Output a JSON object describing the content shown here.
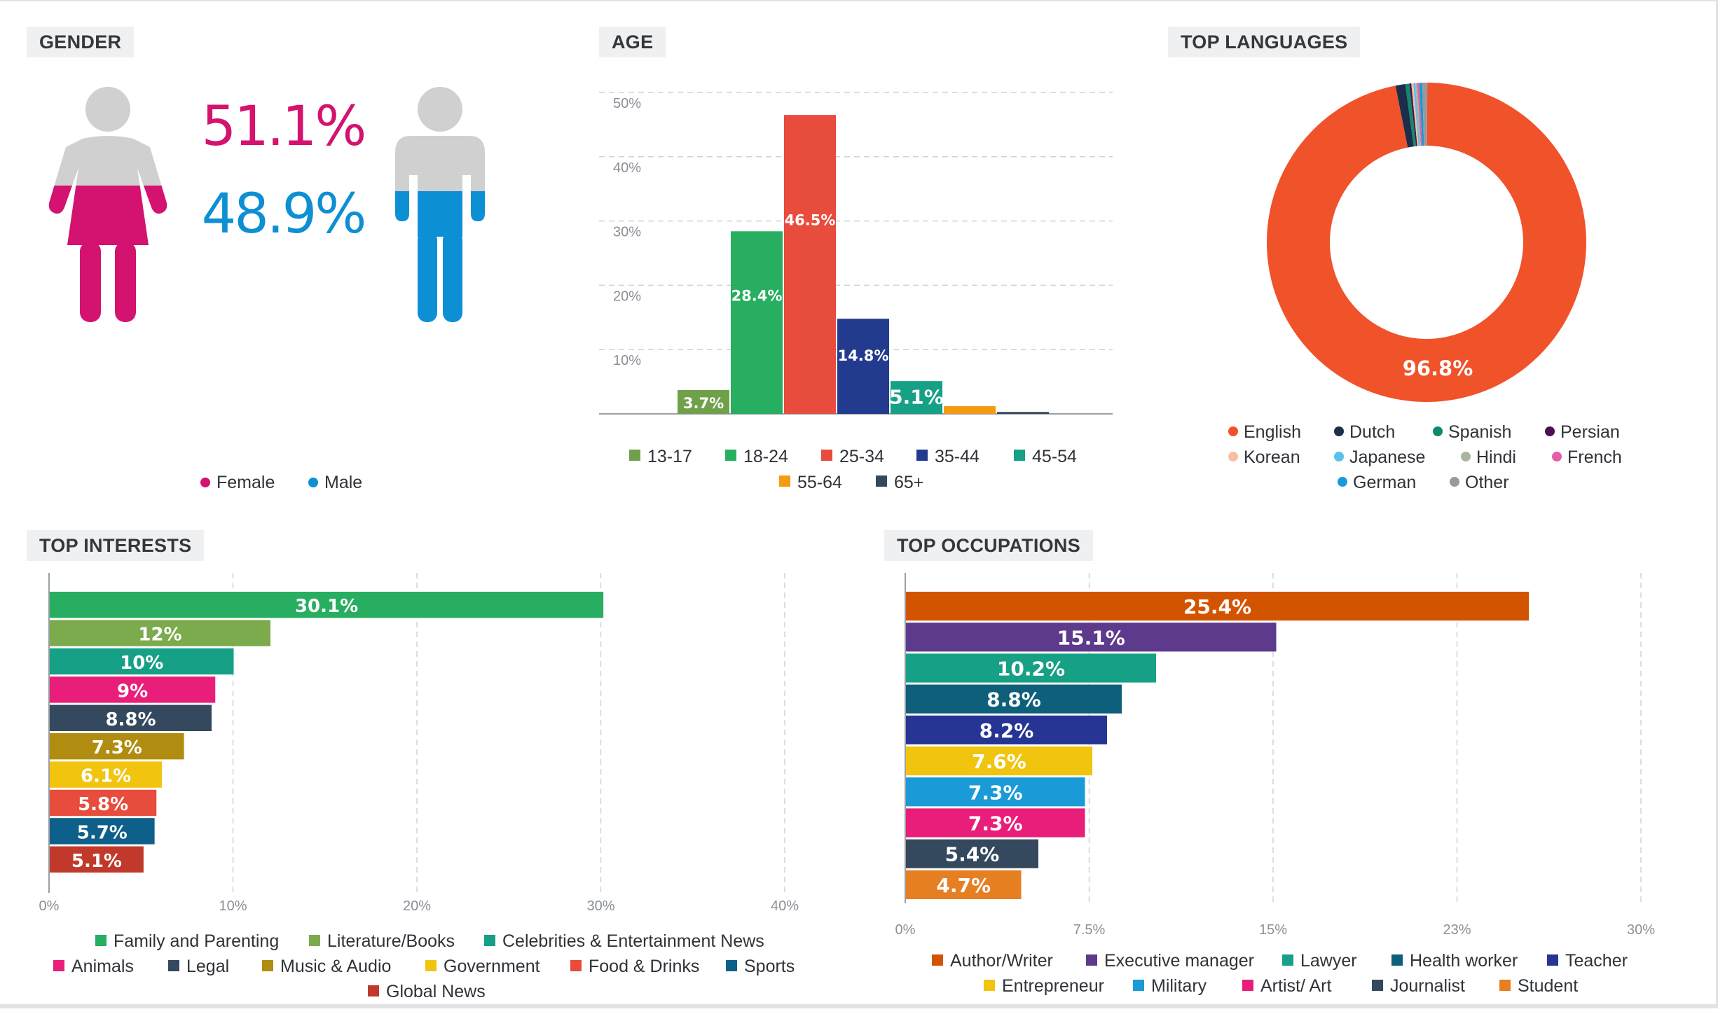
{
  "gender": {
    "title": "GENDER",
    "female": {
      "label": "Female",
      "value": "51.1%",
      "color": "#d4126f",
      "icon": "female-figure-icon"
    },
    "male": {
      "label": "Male",
      "value": "48.9%",
      "color": "#0d8fd4",
      "icon": "male-figure-icon"
    }
  },
  "age": {
    "title": "AGE"
  },
  "languages": {
    "title": "TOP LANGUAGES"
  },
  "interests": {
    "title": "TOP INTERESTS"
  },
  "occupations": {
    "title": "TOP OCCUPATIONS"
  },
  "chart_data": [
    {
      "id": "gender",
      "type": "pie",
      "title": "GENDER",
      "categories": [
        "Female",
        "Male"
      ],
      "values": [
        51.1,
        48.9
      ],
      "colors": [
        "#d4126f",
        "#0d8fd4"
      ],
      "labels": [
        "51.1%",
        "48.9%"
      ],
      "legend": "bottom"
    },
    {
      "id": "age",
      "type": "bar",
      "title": "AGE",
      "categories": [
        "13-17",
        "18-24",
        "25-34",
        "35-44",
        "45-54",
        "55-64",
        "65+"
      ],
      "values": [
        3.7,
        28.4,
        46.5,
        14.8,
        5.1,
        1.2,
        0.3
      ],
      "labels": [
        "3.7%",
        "28.4%",
        "46.5%",
        "14.8%",
        "5.1%",
        "",
        ""
      ],
      "colors": [
        "#70a04a",
        "#27ae60",
        "#e74c3c",
        "#233b8e",
        "#16a085",
        "#f39c12",
        "#34495e"
      ],
      "yticks": [
        "10%",
        "20%",
        "30%",
        "40%",
        "50%"
      ],
      "ylim": [
        0,
        50
      ],
      "grid": true,
      "legend": "bottom"
    },
    {
      "id": "languages",
      "type": "pie",
      "title": "TOP LANGUAGES",
      "categories": [
        "English",
        "Dutch",
        "Spanish",
        "Persian",
        "Korean",
        "Japanese",
        "Hindi",
        "French",
        "German",
        "Other"
      ],
      "values": [
        96.8,
        1.0,
        0.4,
        0.2,
        0.2,
        0.2,
        0.2,
        0.2,
        0.3,
        0.5
      ],
      "colors": [
        "#f0522a",
        "#1c2e4a",
        "#0f8a6c",
        "#4a1052",
        "#f7c1a0",
        "#5bc0eb",
        "#a8b5a0",
        "#e35ea5",
        "#1a9ad6",
        "#999999"
      ],
      "labels": [
        "96.8%"
      ],
      "donut": true,
      "legend": "bottom"
    },
    {
      "id": "interests",
      "type": "bar",
      "orientation": "horizontal",
      "title": "TOP INTERESTS",
      "categories": [
        "Family and Parenting",
        "Literature/Books",
        "Celebrities & Entertainment News",
        "Animals",
        "Legal",
        "Music & Audio",
        "Government",
        "Food & Drinks",
        "Sports",
        "Global News"
      ],
      "values": [
        30.1,
        12,
        10,
        9,
        8.8,
        7.3,
        6.1,
        5.8,
        5.7,
        5.1
      ],
      "labels": [
        "30.1%",
        "12%",
        "10%",
        "9%",
        "8.8%",
        "7.3%",
        "6.1%",
        "5.8%",
        "5.7%",
        "5.1%"
      ],
      "colors": [
        "#27ae60",
        "#7bab4d",
        "#16a085",
        "#e91e7a",
        "#34495e",
        "#b08d10",
        "#f1c40f",
        "#e74c3c",
        "#0e5f8a",
        "#c0392b"
      ],
      "xticks": [
        "0%",
        "10%",
        "20%",
        "30%",
        "40%"
      ],
      "xlim": [
        0,
        40
      ],
      "grid": true,
      "legend": "bottom"
    },
    {
      "id": "occupations",
      "type": "bar",
      "orientation": "horizontal",
      "title": "TOP OCCUPATIONS",
      "categories": [
        "Author/Writer",
        "Executive manager",
        "Lawyer",
        "Health worker",
        "Teacher",
        "Entrepreneur",
        "Military",
        "Artist/ Art",
        "Journalist",
        "Student"
      ],
      "values": [
        25.4,
        15.1,
        10.2,
        8.8,
        8.2,
        7.6,
        7.3,
        7.3,
        5.4,
        4.7
      ],
      "labels": [
        "25.4%",
        "15.1%",
        "10.2%",
        "8.8%",
        "8.2%",
        "7.6%",
        "7.3%",
        "7.3%",
        "5.4%",
        "4.7%"
      ],
      "colors": [
        "#d35400",
        "#5e3a8c",
        "#16a085",
        "#0e5f7a",
        "#263594",
        "#f1c40f",
        "#1a9ad6",
        "#e91e7a",
        "#34495e",
        "#e67e22"
      ],
      "xticks": [
        "0%",
        "7.5%",
        "15%",
        "23%",
        "30%"
      ],
      "xlim": [
        0,
        30
      ],
      "grid": true,
      "legend": "bottom"
    }
  ]
}
